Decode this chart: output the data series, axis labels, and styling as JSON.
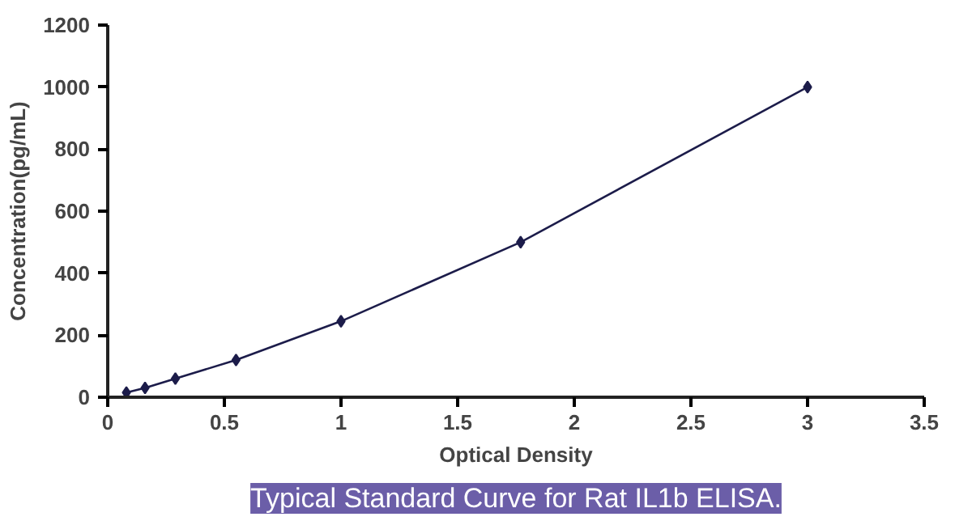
{
  "chart_data": {
    "type": "line",
    "xlabel": "Optical Density",
    "ylabel": "Concentration(pg/mL)",
    "annotations": [
      "Typical Standard Curve for Rat IL1b ELISA."
    ],
    "series": [
      {
        "color": "#1c1c4a",
        "x": [
          0.08,
          0.16,
          0.29,
          0.55,
          1.0,
          1.77,
          3.0
        ],
        "values": [
          15,
          30,
          60,
          120,
          245,
          500,
          1000
        ]
      }
    ],
    "marker": "diamond",
    "line_style": "solid",
    "grid": false,
    "xlim": [
      0,
      3.5
    ],
    "xticks": [
      0,
      0.5,
      1,
      1.5,
      2,
      2.5,
      3,
      3.5
    ],
    "ylim": [
      0,
      1200
    ],
    "yticks": [
      0,
      200,
      400,
      600,
      800,
      1000,
      1200
    ]
  }
}
